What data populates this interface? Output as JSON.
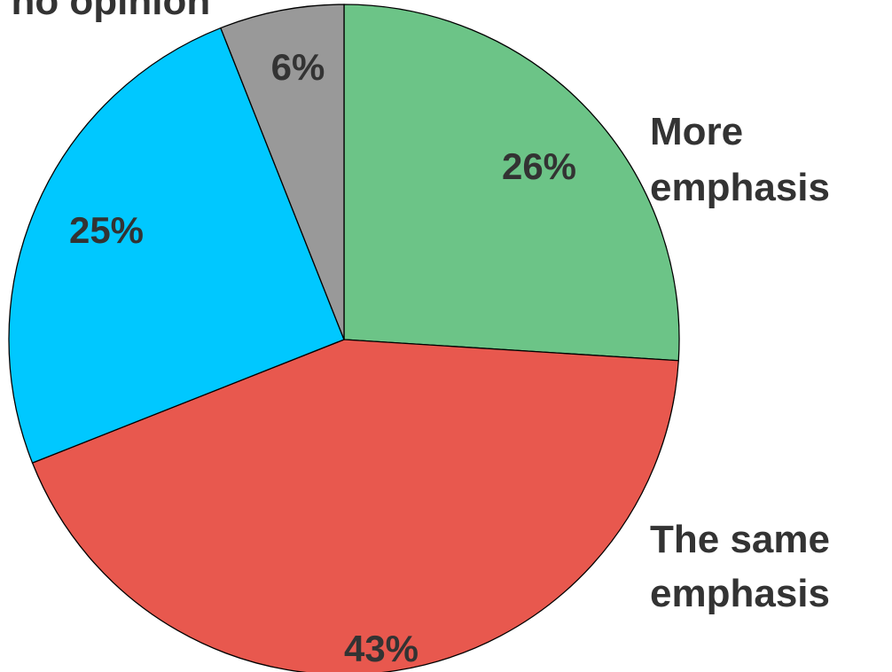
{
  "chart_data": {
    "type": "pie",
    "title": "",
    "slices": [
      {
        "label": "More emphasis",
        "label_lines": [
          "More",
          "emphasis"
        ],
        "value": 26,
        "value_label": "26%",
        "color": "#6cc487"
      },
      {
        "label": "The same emphasis",
        "label_lines": [
          "The same",
          "emphasis"
        ],
        "value": 43,
        "value_label": "43%",
        "color": "#e8584e"
      },
      {
        "label": "",
        "label_lines": [],
        "value": 25,
        "value_label": "25%",
        "color": "#00c8ff"
      },
      {
        "label": "/ no opinion",
        "label_lines": [
          "/ no opinion"
        ],
        "value": 6,
        "value_label": "6%",
        "color": "#999999"
      }
    ]
  }
}
